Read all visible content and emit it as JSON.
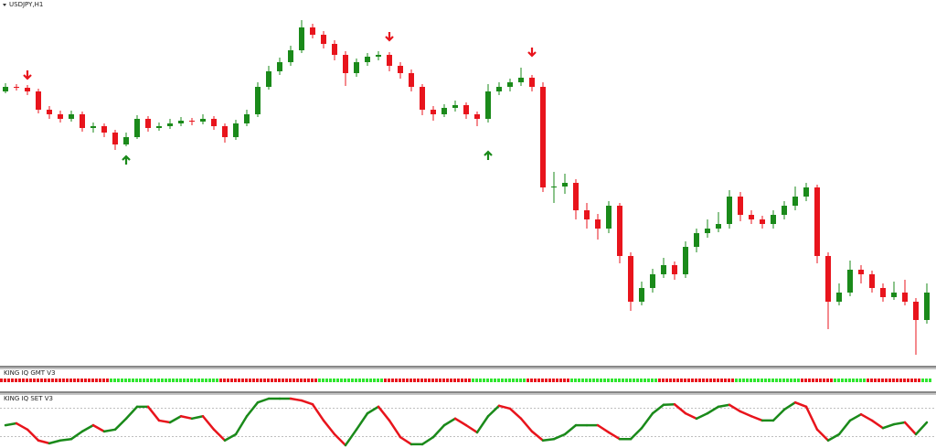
{
  "chart_data": {
    "type": "candlestick",
    "title": "USDJPY,H1",
    "ylim": [
      0,
      400
    ],
    "up_color": "#1a8a1a",
    "down_color": "#e8141c",
    "ohlc": [
      [
        300,
        309,
        298,
        305
      ],
      [
        305,
        308,
        301,
        304
      ],
      [
        304,
        307,
        296,
        300
      ],
      [
        300,
        303,
        276,
        280
      ],
      [
        280,
        284,
        270,
        275
      ],
      [
        275,
        279,
        266,
        270
      ],
      [
        270,
        279,
        267,
        275
      ],
      [
        275,
        278,
        256,
        260
      ],
      [
        260,
        266,
        255,
        262
      ],
      [
        262,
        265,
        250,
        255
      ],
      [
        255,
        258,
        236,
        242
      ],
      [
        242,
        255,
        240,
        250
      ],
      [
        250,
        274,
        248,
        270
      ],
      [
        270,
        273,
        256,
        260
      ],
      [
        260,
        266,
        257,
        262
      ],
      [
        262,
        270,
        259,
        265
      ],
      [
        265,
        272,
        262,
        268
      ],
      [
        268,
        271,
        263,
        267
      ],
      [
        267,
        275,
        264,
        270
      ],
      [
        270,
        273,
        258,
        262
      ],
      [
        262,
        265,
        244,
        250
      ],
      [
        250,
        269,
        247,
        265
      ],
      [
        265,
        280,
        262,
        275
      ],
      [
        275,
        310,
        272,
        305
      ],
      [
        305,
        328,
        302,
        322
      ],
      [
        322,
        337,
        318,
        332
      ],
      [
        332,
        350,
        328,
        345
      ],
      [
        345,
        378,
        342,
        370
      ],
      [
        370,
        374,
        358,
        362
      ],
      [
        362,
        366,
        347,
        352
      ],
      [
        352,
        356,
        334,
        340
      ],
      [
        340,
        344,
        306,
        320
      ],
      [
        320,
        336,
        316,
        332
      ],
      [
        332,
        342,
        328,
        338
      ],
      [
        338,
        344,
        334,
        340
      ],
      [
        340,
        343,
        322,
        328
      ],
      [
        328,
        332,
        314,
        320
      ],
      [
        320,
        324,
        300,
        305
      ],
      [
        305,
        308,
        274,
        280
      ],
      [
        280,
        284,
        268,
        275
      ],
      [
        275,
        286,
        272,
        282
      ],
      [
        282,
        290,
        278,
        285
      ],
      [
        285,
        288,
        270,
        275
      ],
      [
        275,
        278,
        262,
        270
      ],
      [
        270,
        308,
        266,
        300
      ],
      [
        300,
        310,
        296,
        305
      ],
      [
        305,
        314,
        300,
        310
      ],
      [
        310,
        326,
        306,
        315
      ],
      [
        315,
        318,
        300,
        305
      ],
      [
        305,
        310,
        190,
        195
      ],
      [
        195,
        212,
        178,
        196
      ],
      [
        196,
        210,
        188,
        200
      ],
      [
        200,
        204,
        160,
        170
      ],
      [
        170,
        178,
        150,
        160
      ],
      [
        160,
        166,
        138,
        150
      ],
      [
        150,
        180,
        145,
        175
      ],
      [
        175,
        178,
        112,
        120
      ],
      [
        120,
        124,
        60,
        70
      ],
      [
        70,
        92,
        66,
        85
      ],
      [
        85,
        106,
        80,
        100
      ],
      [
        100,
        118,
        96,
        110
      ],
      [
        110,
        114,
        94,
        100
      ],
      [
        100,
        136,
        96,
        130
      ],
      [
        130,
        150,
        124,
        145
      ],
      [
        145,
        160,
        140,
        150
      ],
      [
        150,
        168,
        146,
        155
      ],
      [
        155,
        192,
        150,
        185
      ],
      [
        185,
        190,
        158,
        165
      ],
      [
        165,
        170,
        155,
        160
      ],
      [
        160,
        164,
        150,
        155
      ],
      [
        155,
        170,
        150,
        165
      ],
      [
        165,
        180,
        160,
        175
      ],
      [
        175,
        196,
        170,
        185
      ],
      [
        185,
        200,
        180,
        195
      ],
      [
        195,
        198,
        112,
        120
      ],
      [
        120,
        124,
        40,
        70
      ],
      [
        70,
        90,
        66,
        80
      ],
      [
        80,
        115,
        76,
        105
      ],
      [
        105,
        110,
        90,
        100
      ],
      [
        100,
        104,
        80,
        85
      ],
      [
        85,
        90,
        70,
        75
      ],
      [
        75,
        92,
        72,
        80
      ],
      [
        80,
        94,
        66,
        70
      ],
      [
        70,
        74,
        12,
        50
      ],
      [
        50,
        90,
        46,
        80
      ]
    ],
    "signals": [
      {
        "index": 2,
        "value": 318,
        "color": "#e8141c",
        "direction": "down"
      },
      {
        "index": 11,
        "value": 225,
        "color": "#1a8a1a",
        "direction": "up"
      },
      {
        "index": 35,
        "value": 360,
        "color": "#e8141c",
        "direction": "down"
      },
      {
        "index": 44,
        "value": 230,
        "color": "#1a8a1a",
        "direction": "up"
      },
      {
        "index": 48,
        "value": 343,
        "color": "#e8141c",
        "direction": "down"
      }
    ],
    "gmt": {
      "title": "KING IQ GMT V3",
      "segments": [
        {
          "color": "#e8141c",
          "bars": 10
        },
        {
          "color": "#2ee62e",
          "bars": 10
        },
        {
          "color": "#e8141c",
          "bars": 9
        },
        {
          "color": "#2ee62e",
          "bars": 6
        },
        {
          "color": "#e8141c",
          "bars": 8
        },
        {
          "color": "#2ee62e",
          "bars": 5
        },
        {
          "color": "#e8141c",
          "bars": 4
        },
        {
          "color": "#2ee62e",
          "bars": 8
        },
        {
          "color": "#e8141c",
          "bars": 7
        },
        {
          "color": "#2ee62e",
          "bars": 6
        },
        {
          "color": "#e8141c",
          "bars": 3
        },
        {
          "color": "#2ee62e",
          "bars": 3
        },
        {
          "color": "#e8141c",
          "bars": 5
        },
        {
          "color": "#2ee62e",
          "bars": 1
        }
      ]
    },
    "set": {
      "title": "KING IQ SET V3",
      "ylim": [
        0,
        100
      ],
      "levels": [
        20,
        80
      ],
      "rise_color": "#1a8a1a",
      "fall_color": "#e8141c",
      "values": [
        44,
        48,
        35,
        12,
        6,
        12,
        15,
        31,
        44,
        31,
        35,
        58,
        83,
        83,
        54,
        50,
        63,
        58,
        63,
        35,
        12,
        25,
        63,
        92,
        100,
        100,
        100,
        96,
        88,
        54,
        25,
        2,
        35,
        69,
        83,
        54,
        19,
        4,
        4,
        19,
        44,
        58,
        44,
        29,
        63,
        85,
        79,
        58,
        31,
        12,
        15,
        25,
        44,
        44,
        44,
        29,
        15,
        15,
        38,
        69,
        87,
        88,
        69,
        58,
        69,
        83,
        87,
        73,
        63,
        54,
        54,
        77,
        92,
        83,
        35,
        12,
        25,
        54,
        67,
        54,
        38,
        46,
        50,
        25,
        50
      ]
    }
  }
}
